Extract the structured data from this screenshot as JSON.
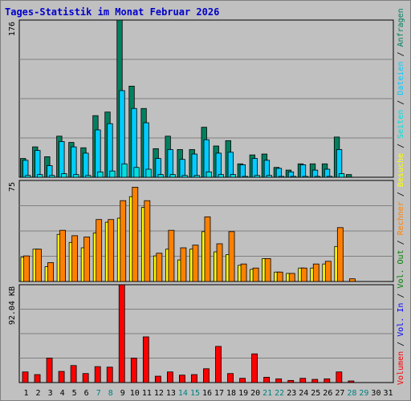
{
  "title": "Tages-Statistik im Monat Februar 2026",
  "colors": {
    "hits": "#008060",
    "files": "#00ccff",
    "sites": "#00e0e0",
    "visits": "#ffff00",
    "kbytes_out": "#ff8000",
    "kbytes": "#ff0000",
    "weekday_label": "#008000",
    "weekend_label": "#008080",
    "legend_in": "#0000ff",
    "legend_out": "#008000"
  },
  "legend": {
    "hits": "Anfragen",
    "files": "Dateien",
    "sites": "Seiten",
    "visits": "Besuche",
    "kbytes_out": "Rechner",
    "vol_out": "Vol. Out",
    "vol_in": "Vol. In",
    "volume": "Volumen",
    "sep": "/"
  },
  "chart_data": [
    {
      "type": "bar",
      "panel": "top",
      "ytick_label": "176",
      "ylim": [
        0,
        176
      ],
      "categories": [
        "1",
        "2",
        "3",
        "4",
        "5",
        "6",
        "7",
        "8",
        "9",
        "10",
        "11",
        "12",
        "13",
        "14",
        "15",
        "16",
        "17",
        "18",
        "19",
        "20",
        "21",
        "22",
        "23",
        "24",
        "25",
        "26",
        "27",
        "28",
        "29",
        "30",
        "31"
      ],
      "weekend": [
        7,
        8,
        14,
        15,
        21,
        22,
        28,
        29
      ],
      "series": [
        {
          "name": "Anfragen",
          "values": [
            21,
            34,
            23,
            46,
            39,
            33,
            69,
            73,
            176,
            102,
            77,
            32,
            46,
            31,
            31,
            56,
            35,
            41,
            15,
            25,
            26,
            11,
            8,
            15,
            15,
            15,
            45,
            3,
            0,
            0,
            0
          ]
        },
        {
          "name": "Dateien",
          "values": [
            19,
            30,
            13,
            40,
            34,
            27,
            53,
            60,
            97,
            77,
            61,
            21,
            31,
            20,
            26,
            42,
            27,
            28,
            14,
            21,
            19,
            10,
            6,
            14,
            8,
            9,
            31,
            0,
            0,
            0,
            0
          ]
        },
        {
          "name": "Seiten",
          "values": [
            2,
            3,
            2,
            4,
            3,
            2,
            6,
            7,
            15,
            11,
            9,
            3,
            3,
            2,
            2,
            6,
            3,
            3,
            1,
            2,
            2,
            1,
            1,
            1,
            1,
            1,
            4,
            0,
            0,
            0,
            0
          ]
        }
      ]
    },
    {
      "type": "bar",
      "panel": "middle",
      "ytick_label": "75",
      "ylim": [
        0,
        75
      ],
      "categories": [
        "1",
        "2",
        "3",
        "4",
        "5",
        "6",
        "7",
        "8",
        "9",
        "10",
        "11",
        "12",
        "13",
        "14",
        "15",
        "16",
        "17",
        "18",
        "19",
        "20",
        "21",
        "22",
        "23",
        "24",
        "25",
        "26",
        "27",
        "28",
        "29",
        "30",
        "31"
      ],
      "series": [
        {
          "name": "Besuche",
          "values": [
            18,
            24,
            11,
            35,
            29,
            25,
            36,
            44,
            47,
            63,
            55,
            19,
            24,
            16,
            24,
            37,
            22,
            20,
            12,
            9,
            17,
            7,
            6,
            10,
            10,
            13,
            26,
            0,
            0,
            0,
            0
          ]
        },
        {
          "name": "Rechner",
          "values": [
            19,
            24,
            14,
            38,
            34,
            33,
            46,
            46,
            60,
            70,
            60,
            21,
            38,
            25,
            27,
            48,
            28,
            37,
            13,
            10,
            17,
            7,
            6,
            10,
            13,
            15,
            40,
            2,
            0,
            0,
            0
          ]
        }
      ]
    },
    {
      "type": "bar",
      "panel": "bottom",
      "ytick_label": "92.04 KB",
      "ylim": [
        0,
        92.04
      ],
      "categories": [
        "1",
        "2",
        "3",
        "4",
        "5",
        "6",
        "7",
        "8",
        "9",
        "10",
        "11",
        "12",
        "13",
        "14",
        "15",
        "16",
        "17",
        "18",
        "19",
        "20",
        "21",
        "22",
        "23",
        "24",
        "25",
        "26",
        "27",
        "28",
        "29",
        "30",
        "31"
      ],
      "series": [
        {
          "name": "Volumen",
          "values": [
            10,
            7.5,
            23,
            10.5,
            16,
            8.5,
            15,
            14.5,
            92,
            23,
            43,
            6,
            10,
            7,
            7.5,
            13,
            34,
            8.5,
            4,
            27,
            5,
            3.5,
            2,
            4,
            3,
            3.5,
            10,
            1.5,
            0,
            0,
            0
          ]
        }
      ]
    }
  ]
}
